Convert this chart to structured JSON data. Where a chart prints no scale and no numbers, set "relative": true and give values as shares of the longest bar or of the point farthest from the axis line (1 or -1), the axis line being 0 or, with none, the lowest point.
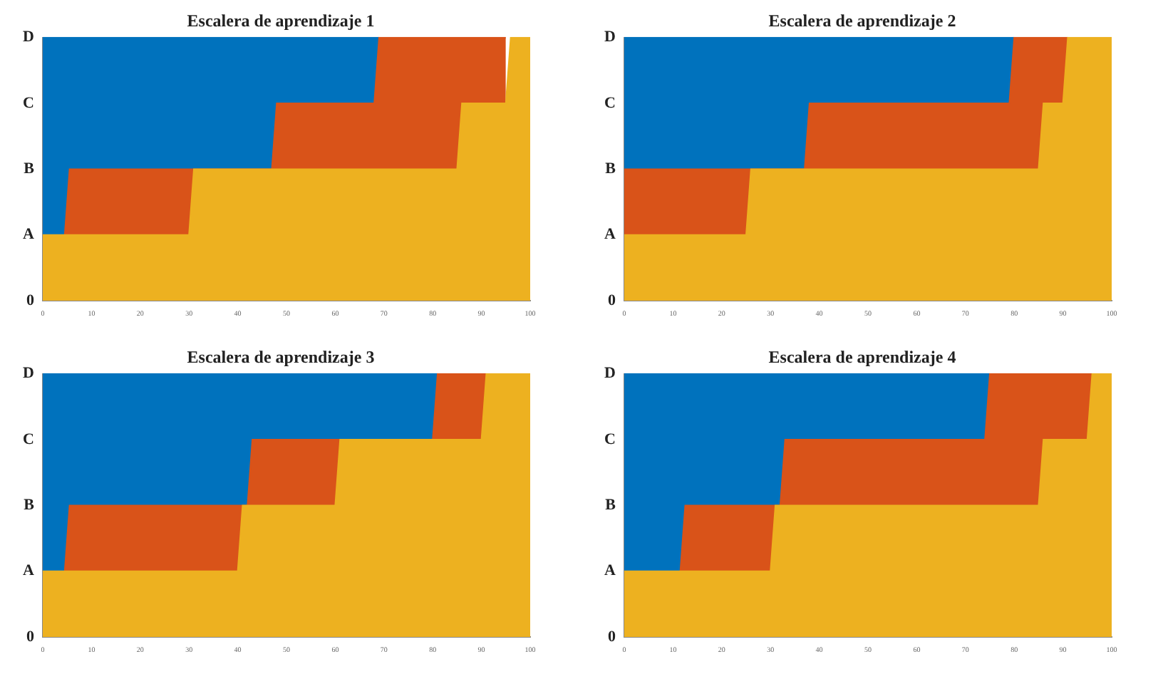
{
  "chart_data": [
    {
      "type": "area",
      "title": "Escalera de aprendizaje 1",
      "xlim": [
        0,
        100
      ],
      "xticks": [
        0,
        10,
        20,
        30,
        40,
        50,
        60,
        70,
        80,
        90,
        100
      ],
      "relative": true,
      "annotations": [
        "0",
        "A",
        "B",
        "C",
        "D"
      ],
      "grid": false,
      "series": [
        {
          "color": "#0072bd",
          "x": [
            0,
            69
          ],
          "values": [
            1,
            1
          ]
        },
        {
          "color": "#d95319",
          "x": [
            4.5,
            5.5,
            47,
            48,
            68,
            69,
            95
          ],
          "values": [
            0.25,
            0.5,
            0.5,
            0.75,
            0.75,
            1,
            1
          ]
        },
        {
          "color": "#edb120",
          "x": [
            0,
            30,
            31,
            85,
            86,
            95,
            96,
            100
          ],
          "values": [
            0.25,
            0.25,
            0.5,
            0.5,
            0.75,
            0.75,
            1,
            1
          ]
        }
      ]
    },
    {
      "type": "area",
      "title": "Escalera de aprendizaje 2",
      "xlim": [
        0,
        100
      ],
      "xticks": [
        0,
        10,
        20,
        30,
        40,
        50,
        60,
        70,
        80,
        90,
        100
      ],
      "relative": true,
      "annotations": [
        "0",
        "A",
        "B",
        "C",
        "D"
      ],
      "grid": false,
      "series": [
        {
          "color": "#0072bd",
          "x": [
            0,
            80
          ],
          "values": [
            1,
            1
          ]
        },
        {
          "color": "#d95319",
          "x": [
            0,
            37,
            38,
            79,
            80,
            91
          ],
          "values": [
            0.5,
            0.5,
            0.75,
            0.75,
            1,
            1
          ]
        },
        {
          "color": "#edb120",
          "x": [
            0,
            25,
            26,
            85,
            86,
            90,
            91,
            100
          ],
          "values": [
            0.25,
            0.25,
            0.5,
            0.5,
            0.75,
            0.75,
            1,
            1
          ]
        }
      ]
    },
    {
      "type": "area",
      "title": "Escalera de aprendizaje 3",
      "xlim": [
        0,
        100
      ],
      "xticks": [
        0,
        10,
        20,
        30,
        40,
        50,
        60,
        70,
        80,
        90,
        100
      ],
      "relative": true,
      "annotations": [
        "0",
        "A",
        "B",
        "C",
        "D"
      ],
      "grid": false,
      "series": [
        {
          "color": "#0072bd",
          "x": [
            0,
            81
          ],
          "values": [
            1,
            1
          ]
        },
        {
          "color": "#d95319",
          "x": [
            4.5,
            5.5,
            42,
            43,
            80,
            81,
            91
          ],
          "values": [
            0.25,
            0.5,
            0.5,
            0.75,
            0.75,
            1,
            1
          ]
        },
        {
          "color": "#edb120",
          "x": [
            0,
            40,
            41,
            60,
            61,
            90,
            91,
            100
          ],
          "values": [
            0.25,
            0.25,
            0.5,
            0.5,
            0.75,
            0.75,
            1,
            1
          ]
        }
      ]
    },
    {
      "type": "area",
      "title": "Escalera de aprendizaje 4",
      "xlim": [
        0,
        100
      ],
      "xticks": [
        0,
        10,
        20,
        30,
        40,
        50,
        60,
        70,
        80,
        90,
        100
      ],
      "relative": true,
      "annotations": [
        "0",
        "A",
        "B",
        "C",
        "D"
      ],
      "grid": false,
      "series": [
        {
          "color": "#0072bd",
          "x": [
            0,
            75
          ],
          "values": [
            1,
            1
          ]
        },
        {
          "color": "#d95319",
          "x": [
            11.5,
            12.5,
            32,
            33,
            74,
            75,
            96
          ],
          "values": [
            0.25,
            0.5,
            0.5,
            0.75,
            0.75,
            1,
            1
          ]
        },
        {
          "color": "#edb120",
          "x": [
            0,
            30,
            31,
            85,
            86,
            95,
            96,
            100
          ],
          "values": [
            0.25,
            0.25,
            0.5,
            0.5,
            0.75,
            0.75,
            1,
            1
          ]
        }
      ]
    }
  ]
}
